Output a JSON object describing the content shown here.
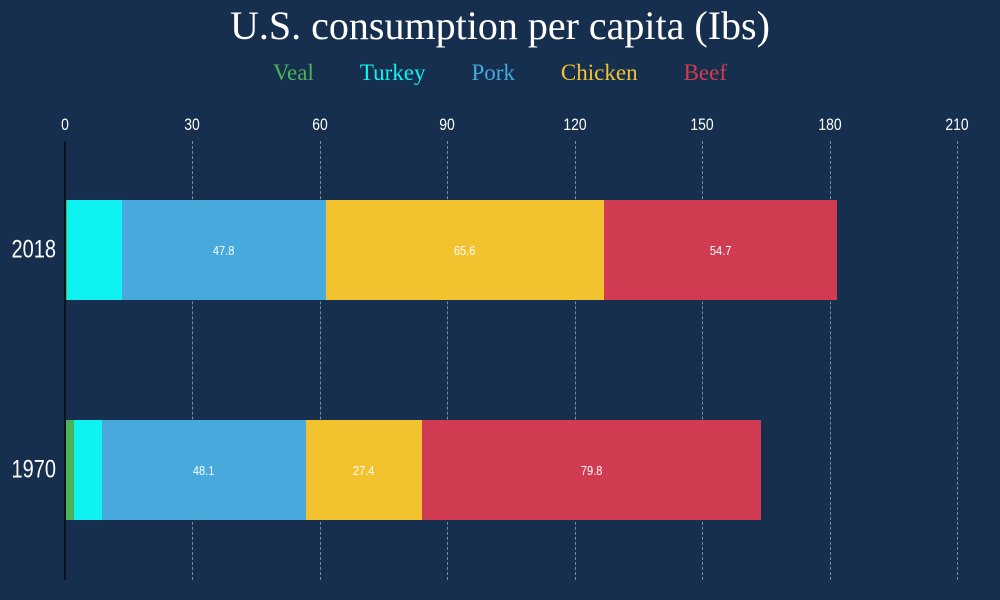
{
  "chart_data": {
    "type": "bar",
    "orientation": "horizontal",
    "stacked": true,
    "title": "U.S. consumption per capita (Ibs)",
    "categories": [
      "2018",
      "1970"
    ],
    "series": [
      {
        "name": "Veal",
        "color": "#4cb258",
        "values": [
          0.3,
          2.0
        ]
      },
      {
        "name": "Turkey",
        "color": "#0ff2f2",
        "values": [
          13.0,
          6.4
        ]
      },
      {
        "name": "Pork",
        "color": "#47a9dc",
        "values": [
          47.8,
          48.1
        ]
      },
      {
        "name": "Chicken",
        "color": "#f3c22f",
        "values": [
          65.6,
          27.4
        ]
      },
      {
        "name": "Beef",
        "color": "#d23c52",
        "values": [
          54.7,
          79.8
        ]
      }
    ],
    "x_ticks": [
      0,
      30,
      60,
      90,
      120,
      150,
      180,
      210
    ],
    "xlim": [
      0,
      210
    ],
    "grid": "vertical-dashed",
    "legend_position": "top-center",
    "legend_style": "colored-text-no-swatch",
    "value_label_min": 20,
    "value_labels_shown": [
      "47.8",
      "65.6",
      "54.7",
      "48.1",
      "27.4",
      "79.8"
    ]
  },
  "colors": {
    "background": "#162f4e",
    "text": "#ffffff",
    "gridline": "#b0bdca",
    "axis_line": "#0a1220"
  }
}
